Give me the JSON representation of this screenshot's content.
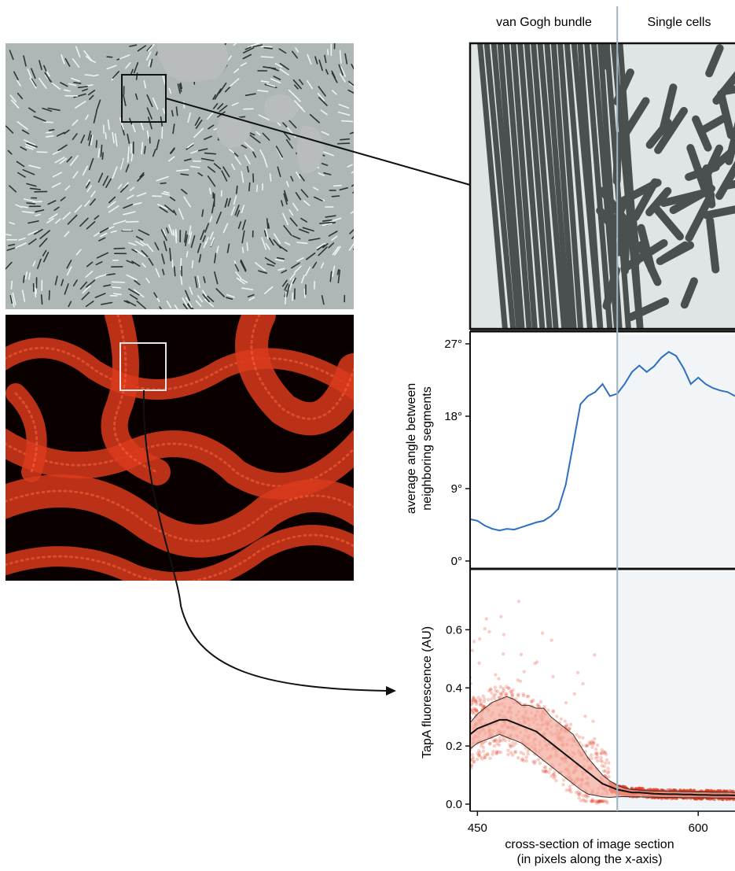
{
  "header": {
    "left_label": "van Gogh bundle",
    "right_label": "Single cells"
  },
  "colors": {
    "angle_line": "#2f6fc1",
    "fluor_points": "#e23b1e",
    "fluor_band": "#f4a89a",
    "mean_line": "#111111",
    "single_cells_shade": "#f1f5f8",
    "divider": "#9fb2bd",
    "fluor_panel_bg": "#0a0000",
    "fluor_cells": "#d93a1c"
  },
  "icons": {
    "zoom_connector": "line-connector",
    "projection_arrow": "curved-arrow-icon"
  },
  "chart_data": [
    {
      "type": "line",
      "ylabel": "average angle between\nneighboring segments",
      "yticks": [
        "0°",
        "9°",
        "18°",
        "27°"
      ],
      "ylim": [
        0,
        28
      ],
      "xlim": [
        445,
        625
      ],
      "divider_x": 545,
      "series": [
        {
          "x": [
            445,
            450,
            455,
            460,
            465,
            470,
            475,
            480,
            485,
            490,
            495,
            500,
            505,
            510,
            515,
            520,
            525,
            530,
            535,
            540,
            545,
            550,
            555,
            560,
            565,
            570,
            575,
            580,
            585,
            590,
            595,
            600,
            605,
            610,
            615,
            620,
            625
          ],
          "values": [
            5.2,
            5.0,
            4.4,
            4.0,
            3.8,
            4.0,
            3.9,
            4.2,
            4.5,
            4.8,
            5.0,
            5.6,
            6.5,
            9.5,
            14.5,
            19.5,
            20.5,
            21.0,
            22.0,
            20.5,
            20.8,
            22.0,
            23.5,
            24.3,
            23.5,
            24.2,
            25.3,
            26.0,
            25.5,
            24.0,
            22.0,
            22.8,
            22.0,
            21.5,
            21.2,
            21.0,
            20.5
          ]
        }
      ]
    },
    {
      "type": "line",
      "ylabel": "TapA fluorescence (AU)",
      "xlabel": "cross-section of image section\n(in pixels along the x-axis)",
      "xticks": [
        "450",
        "600"
      ],
      "yticks": [
        "0.0",
        "0.2",
        "0.4",
        "0.6"
      ],
      "ylim": [
        0,
        0.75
      ],
      "xlim": [
        445,
        625
      ],
      "divider_x": 545,
      "series": [
        {
          "x": [
            445,
            450,
            455,
            460,
            465,
            470,
            475,
            480,
            485,
            490,
            495,
            500,
            505,
            510,
            515,
            520,
            525,
            530,
            535,
            540,
            545,
            550,
            555,
            560,
            565,
            570,
            575,
            580,
            585,
            590,
            595,
            600,
            605,
            610,
            615,
            620,
            625
          ],
          "values": [
            0.24,
            0.26,
            0.27,
            0.28,
            0.29,
            0.29,
            0.28,
            0.27,
            0.26,
            0.25,
            0.23,
            0.21,
            0.19,
            0.17,
            0.15,
            0.13,
            0.11,
            0.09,
            0.07,
            0.06,
            0.05,
            0.045,
            0.04,
            0.04,
            0.038,
            0.036,
            0.035,
            0.034,
            0.034,
            0.033,
            0.033,
            0.032,
            0.032,
            0.031,
            0.031,
            0.031,
            0.03
          ]
        },
        {
          "x": [
            445,
            450,
            455,
            460,
            465,
            470,
            475,
            480,
            485,
            490,
            495,
            500,
            505,
            510,
            515,
            520,
            525,
            530,
            535,
            540,
            545,
            550,
            555,
            560,
            565,
            570,
            575,
            580,
            585,
            590,
            595,
            600,
            605,
            610,
            615,
            620,
            625
          ],
          "values": [
            0.28,
            0.31,
            0.33,
            0.35,
            0.36,
            0.37,
            0.36,
            0.34,
            0.34,
            0.33,
            0.33,
            0.3,
            0.28,
            0.26,
            0.24,
            0.2,
            0.16,
            0.13,
            0.1,
            0.08,
            0.065,
            0.055,
            0.05,
            0.048,
            0.046,
            0.045,
            0.045,
            0.044,
            0.044,
            0.043,
            0.043,
            0.042,
            0.042,
            0.041,
            0.041,
            0.041,
            0.04
          ]
        },
        {
          "x": [
            445,
            450,
            455,
            460,
            465,
            470,
            475,
            480,
            485,
            490,
            495,
            500,
            505,
            510,
            515,
            520,
            525,
            530,
            535,
            540,
            545,
            550,
            555,
            560,
            565,
            570,
            575,
            580,
            585,
            590,
            595,
            600,
            605,
            610,
            615,
            620,
            625
          ],
          "values": [
            0.19,
            0.21,
            0.22,
            0.23,
            0.24,
            0.23,
            0.22,
            0.21,
            0.19,
            0.17,
            0.15,
            0.13,
            0.11,
            0.09,
            0.07,
            0.05,
            0.035,
            0.03,
            0.025,
            0.023,
            0.025,
            0.026,
            0.025,
            0.025,
            0.024,
            0.024,
            0.023,
            0.023,
            0.023,
            0.022,
            0.022,
            0.022,
            0.022,
            0.021,
            0.021,
            0.021,
            0.02
          ]
        }
      ]
    }
  ]
}
